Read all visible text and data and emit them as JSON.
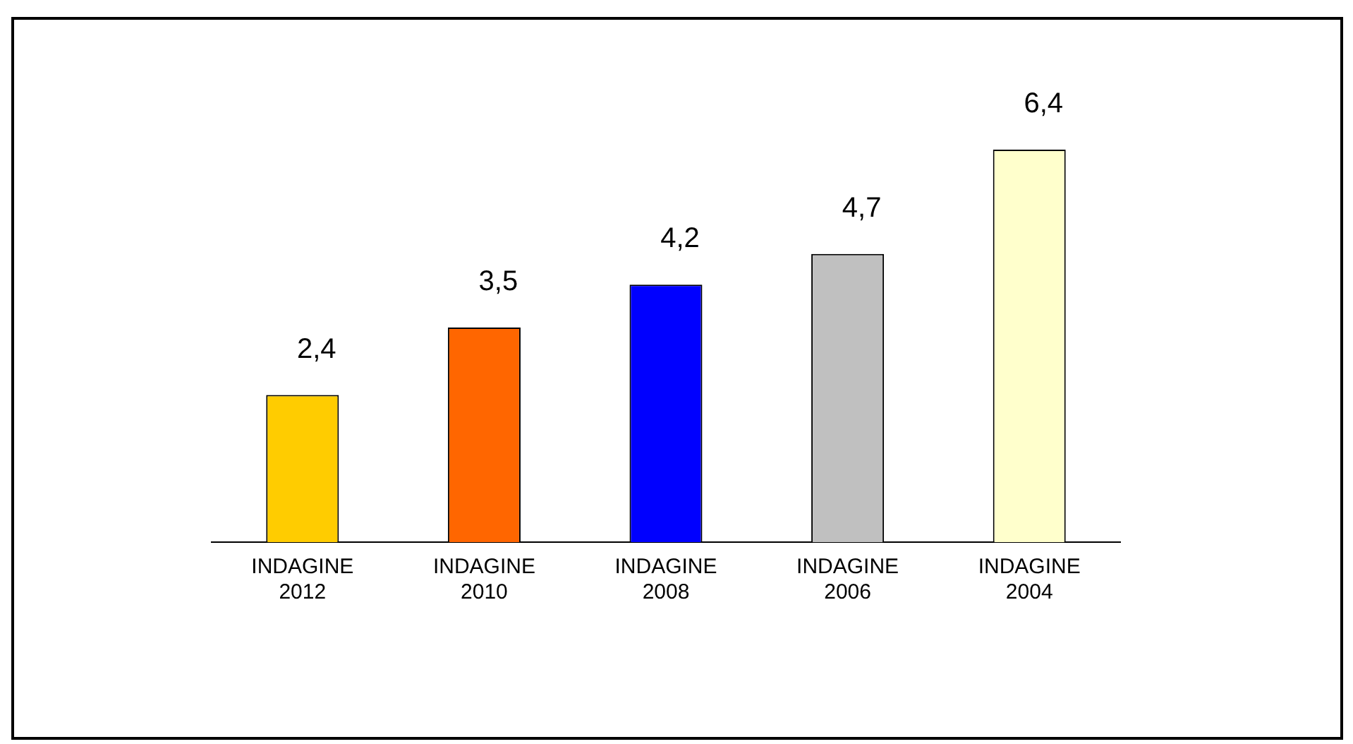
{
  "chart_data": {
    "type": "bar",
    "categories": [
      "INDAGINE 2012",
      "INDAGINE 2010",
      "INDAGINE 2008",
      "INDAGINE 2006",
      "INDAGINE 2004"
    ],
    "values": [
      2.4,
      3.5,
      4.2,
      4.7,
      6.4
    ],
    "colors": [
      "#ffcc00",
      "#ff6600",
      "#0000ff",
      "#c0c0c0",
      "#ffffcc"
    ],
    "value_labels": [
      "2,4",
      "3,5",
      "4,2",
      "4,7",
      "6,4"
    ],
    "legend": false,
    "grid": false
  }
}
